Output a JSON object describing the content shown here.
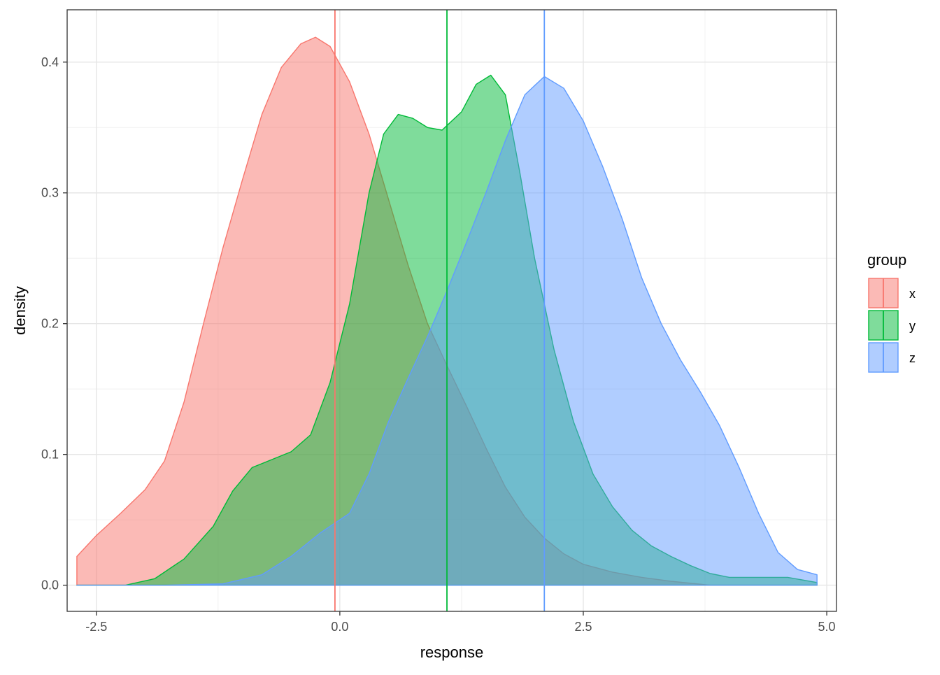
{
  "chart_data": {
    "type": "area",
    "subtype": "density",
    "title": "",
    "xlabel": "response",
    "ylabel": "density",
    "xlim": [
      -2.8,
      5.1
    ],
    "ylim": [
      -0.02,
      0.44
    ],
    "x_ticks": [
      -2.5,
      0.0,
      2.5,
      5.0
    ],
    "x_tick_labels": [
      "-2.5",
      "0.0",
      "2.5",
      "5.0"
    ],
    "y_ticks": [
      0.0,
      0.1,
      0.2,
      0.3,
      0.4
    ],
    "y_tick_labels": [
      "0.0",
      "0.1",
      "0.2",
      "0.3",
      "0.4"
    ],
    "grid": true,
    "legend": {
      "title": "group",
      "position": "right"
    },
    "series": [
      {
        "name": "x",
        "color": "#F8766D",
        "mean": -0.05,
        "points": [
          [
            -2.7,
            0.022
          ],
          [
            -2.5,
            0.038
          ],
          [
            -2.25,
            0.055
          ],
          [
            -2.0,
            0.073
          ],
          [
            -1.8,
            0.095
          ],
          [
            -1.6,
            0.14
          ],
          [
            -1.4,
            0.2
          ],
          [
            -1.2,
            0.258
          ],
          [
            -1.0,
            0.31
          ],
          [
            -0.8,
            0.36
          ],
          [
            -0.6,
            0.396
          ],
          [
            -0.4,
            0.414
          ],
          [
            -0.25,
            0.419
          ],
          [
            -0.1,
            0.412
          ],
          [
            0.1,
            0.385
          ],
          [
            0.3,
            0.345
          ],
          [
            0.5,
            0.295
          ],
          [
            0.7,
            0.245
          ],
          [
            0.9,
            0.2
          ],
          [
            1.1,
            0.168
          ],
          [
            1.3,
            0.137
          ],
          [
            1.5,
            0.105
          ],
          [
            1.7,
            0.075
          ],
          [
            1.9,
            0.052
          ],
          [
            2.1,
            0.036
          ],
          [
            2.3,
            0.024
          ],
          [
            2.5,
            0.016
          ],
          [
            2.8,
            0.01
          ],
          [
            3.1,
            0.006
          ],
          [
            3.4,
            0.003
          ],
          [
            3.8,
            0.0
          ],
          [
            4.9,
            0.0
          ]
        ]
      },
      {
        "name": "y",
        "color": "#00BA38",
        "mean": 1.1,
        "points": [
          [
            -2.7,
            0.0
          ],
          [
            -2.2,
            0.0
          ],
          [
            -1.9,
            0.005
          ],
          [
            -1.6,
            0.02
          ],
          [
            -1.3,
            0.045
          ],
          [
            -1.1,
            0.072
          ],
          [
            -0.9,
            0.09
          ],
          [
            -0.7,
            0.096
          ],
          [
            -0.5,
            0.102
          ],
          [
            -0.3,
            0.115
          ],
          [
            -0.1,
            0.155
          ],
          [
            0.1,
            0.215
          ],
          [
            0.3,
            0.3
          ],
          [
            0.45,
            0.345
          ],
          [
            0.6,
            0.36
          ],
          [
            0.75,
            0.357
          ],
          [
            0.9,
            0.35
          ],
          [
            1.05,
            0.348
          ],
          [
            1.25,
            0.362
          ],
          [
            1.4,
            0.383
          ],
          [
            1.55,
            0.39
          ],
          [
            1.7,
            0.375
          ],
          [
            1.85,
            0.315
          ],
          [
            2.0,
            0.25
          ],
          [
            2.2,
            0.18
          ],
          [
            2.4,
            0.125
          ],
          [
            2.6,
            0.085
          ],
          [
            2.8,
            0.06
          ],
          [
            3.0,
            0.042
          ],
          [
            3.2,
            0.03
          ],
          [
            3.4,
            0.022
          ],
          [
            3.6,
            0.015
          ],
          [
            3.8,
            0.009
          ],
          [
            4.0,
            0.006
          ],
          [
            4.3,
            0.006
          ],
          [
            4.6,
            0.006
          ],
          [
            4.9,
            0.002
          ]
        ]
      },
      {
        "name": "z",
        "color": "#619CFF",
        "mean": 2.1,
        "points": [
          [
            -2.7,
            0.0
          ],
          [
            -1.8,
            0.0
          ],
          [
            -1.2,
            0.001
          ],
          [
            -0.8,
            0.008
          ],
          [
            -0.5,
            0.022
          ],
          [
            -0.2,
            0.04
          ],
          [
            0.1,
            0.055
          ],
          [
            0.3,
            0.085
          ],
          [
            0.5,
            0.125
          ],
          [
            0.7,
            0.158
          ],
          [
            0.9,
            0.19
          ],
          [
            1.1,
            0.225
          ],
          [
            1.3,
            0.262
          ],
          [
            1.5,
            0.3
          ],
          [
            1.7,
            0.34
          ],
          [
            1.9,
            0.375
          ],
          [
            2.1,
            0.389
          ],
          [
            2.3,
            0.38
          ],
          [
            2.5,
            0.355
          ],
          [
            2.7,
            0.32
          ],
          [
            2.9,
            0.28
          ],
          [
            3.1,
            0.235
          ],
          [
            3.3,
            0.2
          ],
          [
            3.5,
            0.172
          ],
          [
            3.7,
            0.148
          ],
          [
            3.9,
            0.122
          ],
          [
            4.1,
            0.09
          ],
          [
            4.3,
            0.055
          ],
          [
            4.5,
            0.025
          ],
          [
            4.7,
            0.012
          ],
          [
            4.9,
            0.008
          ]
        ]
      }
    ]
  }
}
